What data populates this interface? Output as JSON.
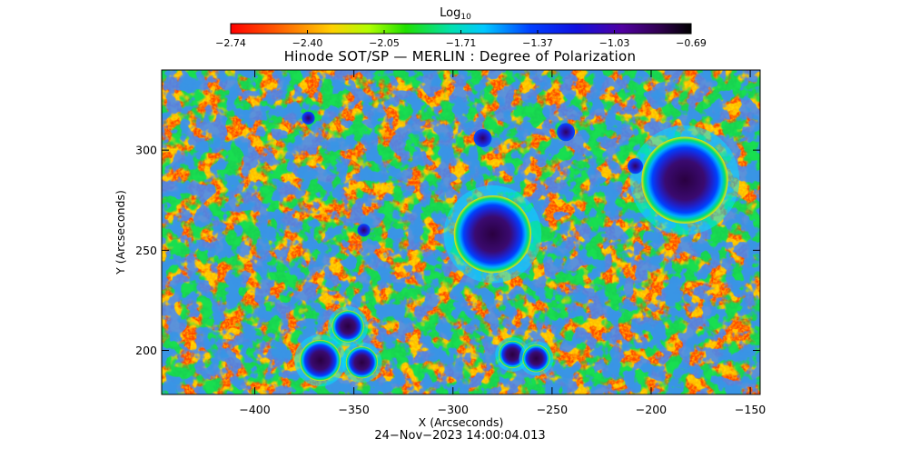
{
  "chart_data": {
    "type": "heatmap",
    "title": "Hinode SOT/SP — MERLIN : Degree of Polarization",
    "colorbar": {
      "label_base": "Log",
      "label_sub": "10",
      "ticks": [
        "-2.74",
        "-2.40",
        "-2.05",
        "-1.71",
        "-1.37",
        "-1.03",
        "-0.69"
      ],
      "range": [
        -2.74,
        -0.69
      ],
      "colormap": "rainbow (red low → violet/black high)"
    },
    "xlabel": "X (Arcseconds)",
    "ylabel": "Y (Arcseconds)",
    "xlim": [
      -447,
      -145
    ],
    "ylim": [
      178,
      340
    ],
    "xticks": [
      -400,
      -350,
      -300,
      -250,
      -200,
      -150
    ],
    "xtick_labels": [
      "−400",
      "−350",
      "−300",
      "−250",
      "−200",
      "−150"
    ],
    "yticks": [
      200,
      250,
      300
    ],
    "ytick_labels": [
      "200",
      "250",
      "300"
    ],
    "features": [
      {
        "kind": "sunspot",
        "x": -280,
        "y": 258,
        "r": 17
      },
      {
        "kind": "sunspot",
        "x": -183,
        "y": 285,
        "r": 19
      },
      {
        "kind": "sunspot",
        "x": -353,
        "y": 212,
        "r": 7
      },
      {
        "kind": "sunspot",
        "x": -367,
        "y": 195,
        "r": 9
      },
      {
        "kind": "sunspot",
        "x": -346,
        "y": 194,
        "r": 7
      },
      {
        "kind": "sunspot",
        "x": -270,
        "y": 198,
        "r": 6
      },
      {
        "kind": "sunspot",
        "x": -258,
        "y": 196,
        "r": 6
      },
      {
        "kind": "pore",
        "x": -285,
        "y": 306,
        "r": 3.5
      },
      {
        "kind": "pore",
        "x": -243,
        "y": 309,
        "r": 3.5
      },
      {
        "kind": "pore",
        "x": -208,
        "y": 292,
        "r": 3
      },
      {
        "kind": "pore",
        "x": -373,
        "y": 316,
        "r": 2.5
      },
      {
        "kind": "pore",
        "x": -345,
        "y": 260,
        "r": 2.5
      }
    ],
    "grid": false
  },
  "footer": {
    "timestamp": "24−Nov−2023 14:00:04.013"
  }
}
